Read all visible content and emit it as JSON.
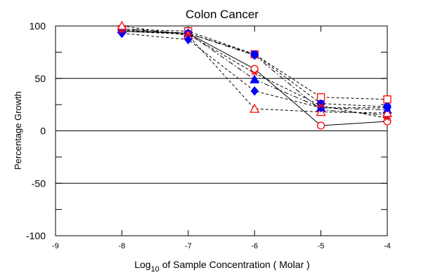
{
  "chart_data": {
    "type": "line",
    "title": "Colon Cancer",
    "ylabel": "Percentage Growth",
    "xlabel": {
      "prefix": "Log",
      "subscript": "10",
      "suffix": " of Sample Concentration ( Molar )"
    },
    "xlim": [
      -9,
      -4
    ],
    "ylim": [
      -100,
      100
    ],
    "x_ticks": [
      {
        "value": -9,
        "label": "-9"
      },
      {
        "value": -8,
        "label": "-8"
      },
      {
        "value": -7,
        "label": "-7"
      },
      {
        "value": -6,
        "label": "-6"
      },
      {
        "value": -5,
        "label": "-5"
      },
      {
        "value": -4,
        "label": "-4"
      }
    ],
    "y_ticks": [
      {
        "value": -100,
        "label": "-100"
      },
      {
        "value": -50,
        "label": "-50"
      },
      {
        "value": 0,
        "label": "0"
      },
      {
        "value": 50,
        "label": "50"
      },
      {
        "value": 100,
        "label": "100"
      }
    ],
    "y_minor_ticks": [
      -75,
      -25,
      25,
      75
    ],
    "reference_lines": [
      50,
      0,
      -50
    ],
    "grid": false,
    "series": [
      {
        "x": [
          -8,
          -7,
          -6,
          -5,
          -4
        ],
        "y": [
          95,
          93,
          59,
          5,
          9
        ],
        "color": "#ff0000",
        "marker": "circle-open",
        "dash": "solid"
      },
      {
        "x": [
          -8,
          -7,
          -6,
          -5,
          -4
        ],
        "y": [
          95,
          93,
          72,
          20,
          15
        ],
        "color": "#0000ff",
        "marker": "diamond",
        "dash": "dashdot"
      },
      {
        "x": [
          -8,
          -7,
          -6,
          -5,
          -4
        ],
        "y": [
          97,
          95,
          73,
          32,
          30
        ],
        "color": "#ff0000",
        "marker": "square-open",
        "dash": "dashed"
      },
      {
        "x": [
          -8,
          -7,
          -6,
          -5,
          -4
        ],
        "y": [
          96,
          93,
          73,
          26,
          23
        ],
        "color": "#0000ff",
        "marker": "circle",
        "dash": "dashed"
      },
      {
        "x": [
          -8,
          -7,
          -6,
          -5,
          -4
        ],
        "y": [
          97,
          93,
          49,
          22,
          20
        ],
        "color": "#0000ff",
        "marker": "triangle",
        "dash": "dashdot"
      },
      {
        "x": [
          -8,
          -7,
          -6,
          -5,
          -4
        ],
        "y": [
          100,
          91,
          21,
          18,
          17
        ],
        "color": "#ff0000",
        "marker": "triangle-open",
        "dash": "dashed"
      },
      {
        "x": [
          -8,
          -7,
          -6,
          -5,
          -4
        ],
        "y": [
          93,
          87,
          38,
          22,
          22
        ],
        "color": "#0000ff",
        "marker": "diamond",
        "dash": "dashed"
      },
      {
        "x": [
          -8,
          -7,
          -6,
          -5,
          -4
        ],
        "y": [
          95,
          92,
          55,
          24,
          12
        ],
        "color": "#ff0000",
        "marker": "asterisk",
        "dash": "dashed"
      }
    ]
  }
}
